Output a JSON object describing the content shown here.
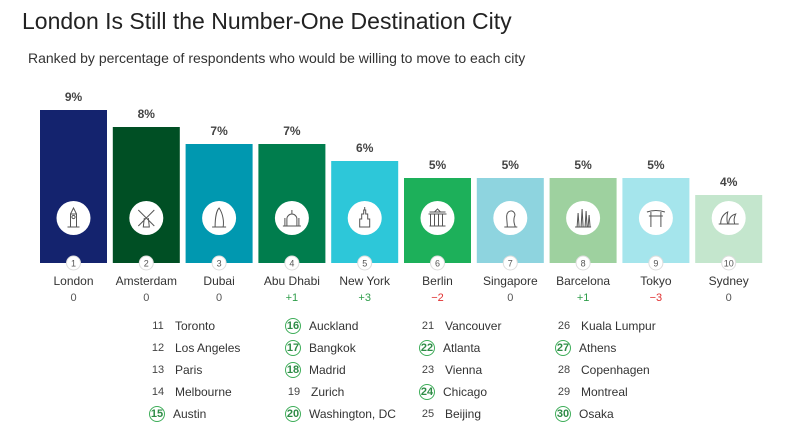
{
  "header": {
    "title": "London Is Still the Number-One Destination City",
    "subtitle": "Ranked by percentage of respondents who would be willing to move to each city"
  },
  "chart_data": {
    "type": "bar",
    "title": "London Is Still the Number-One Destination City",
    "subtitle": "Ranked by percentage of respondents who would be willing to move to each city",
    "categories": [
      "London",
      "Amsterdam",
      "Dubai",
      "Abu Dhabi",
      "New York",
      "Berlin",
      "Singapore",
      "Barcelona",
      "Tokyo",
      "Sydney"
    ],
    "values": [
      9,
      8,
      7,
      7,
      6,
      5,
      5,
      5,
      5,
      4
    ],
    "value_labels": [
      "9%",
      "8%",
      "7%",
      "7%",
      "6%",
      "5%",
      "5%",
      "5%",
      "5%",
      "4%"
    ],
    "ranks": [
      "1",
      "2",
      "3",
      "4",
      "5",
      "6",
      "7",
      "8",
      "9",
      "10"
    ],
    "changes": [
      "0",
      "0",
      "0",
      "+1",
      "+3",
      "−2",
      "0",
      "+1",
      "−3",
      "0"
    ],
    "colors": [
      "#14236e",
      "#004f24",
      "#0098b0",
      "#007d4d",
      "#2dc7d9",
      "#1db05a",
      "#8ed4df",
      "#9ed19f",
      "#a5e5ec",
      "#c4e6cd"
    ],
    "change_colors": {
      "positive": "#2e9d4a",
      "negative": "#e03030",
      "neutral": "#555555"
    },
    "icons": [
      "big-ben-icon",
      "windmill-icon",
      "burj-al-arab-icon",
      "grand-mosque-icon",
      "empire-state-icon",
      "brandenburg-gate-icon",
      "merlion-icon",
      "sagrada-familia-icon",
      "torii-gate-icon",
      "opera-house-icon"
    ],
    "ylim": [
      0,
      10
    ],
    "unit": "%"
  },
  "ranks_11_30": [
    [
      {
        "rank": "11",
        "city": "Toronto",
        "up": false
      },
      {
        "rank": "12",
        "city": "Los Angeles",
        "up": false
      },
      {
        "rank": "13",
        "city": "Paris",
        "up": false
      },
      {
        "rank": "14",
        "city": "Melbourne",
        "up": false
      },
      {
        "rank": "15",
        "city": "Austin",
        "up": true
      }
    ],
    [
      {
        "rank": "16",
        "city": "Auckland",
        "up": true
      },
      {
        "rank": "17",
        "city": "Bangkok",
        "up": true
      },
      {
        "rank": "18",
        "city": "Madrid",
        "up": true
      },
      {
        "rank": "19",
        "city": "Zurich",
        "up": false
      },
      {
        "rank": "20",
        "city": "Washington, DC",
        "up": true
      }
    ],
    [
      {
        "rank": "21",
        "city": "Vancouver",
        "up": false
      },
      {
        "rank": "22",
        "city": "Atlanta",
        "up": true
      },
      {
        "rank": "23",
        "city": "Vienna",
        "up": false
      },
      {
        "rank": "24",
        "city": "Chicago",
        "up": true
      },
      {
        "rank": "25",
        "city": "Beijing",
        "up": false
      }
    ],
    [
      {
        "rank": "26",
        "city": "Kuala Lumpur",
        "up": false
      },
      {
        "rank": "27",
        "city": "Athens",
        "up": true
      },
      {
        "rank": "28",
        "city": "Copenhagen",
        "up": false
      },
      {
        "rank": "29",
        "city": "Montreal",
        "up": false
      },
      {
        "rank": "30",
        "city": "Osaka",
        "up": true
      }
    ]
  ]
}
